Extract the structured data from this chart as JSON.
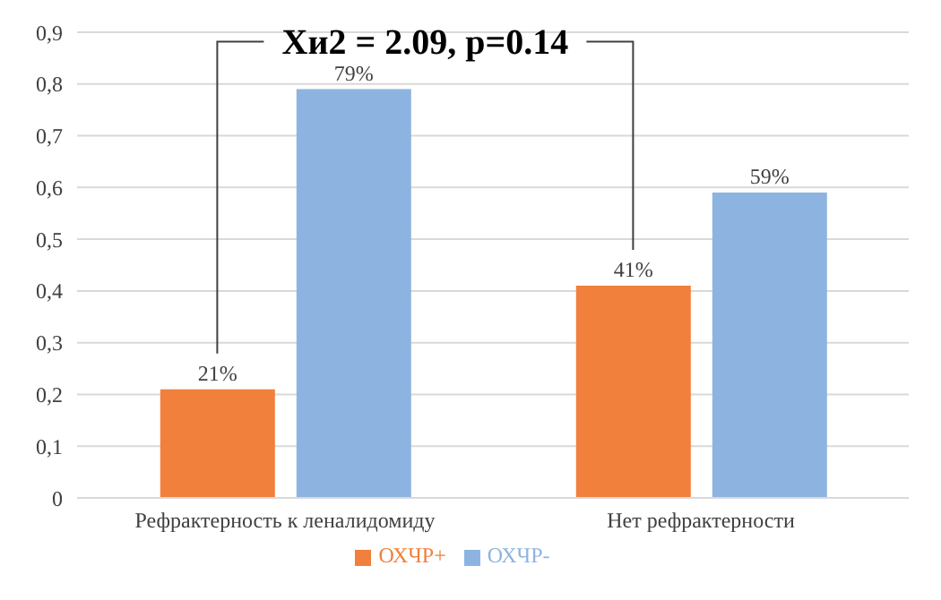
{
  "chart_data": {
    "type": "bar",
    "categories": [
      "Рефрактерность к леналидомиду",
      "Нет рефрактерности"
    ],
    "series": [
      {
        "name": "ОХЧР+",
        "color": "#f0803c",
        "values": [
          0.21,
          0.41
        ],
        "value_labels": [
          "21%",
          "41%"
        ]
      },
      {
        "name": "ОХЧР-",
        "color": "#8db4e0",
        "values": [
          0.79,
          0.59
        ],
        "value_labels": [
          "79%",
          "59%"
        ]
      }
    ],
    "ylim": [
      0,
      0.9
    ],
    "yticks": [
      {
        "value": 0,
        "label": "0"
      },
      {
        "value": 0.1,
        "label": "0,1"
      },
      {
        "value": 0.2,
        "label": "0,2"
      },
      {
        "value": 0.3,
        "label": "0,3"
      },
      {
        "value": 0.4,
        "label": "0,4"
      },
      {
        "value": 0.5,
        "label": "0,5"
      },
      {
        "value": 0.6,
        "label": "0,6"
      },
      {
        "value": 0.7,
        "label": "0,7"
      },
      {
        "value": 0.8,
        "label": "0,8"
      },
      {
        "value": 0.9,
        "label": "0,9"
      }
    ],
    "grid": "y",
    "legend": "bottom",
    "annotations": [
      "Хи2 = 2.09, p=0.14"
    ]
  }
}
